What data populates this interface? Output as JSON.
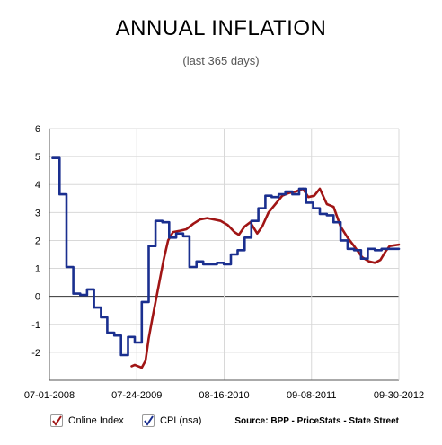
{
  "title": "ANNUAL INFLATION",
  "subtitle": "(last 365 days)",
  "legend": {
    "online_label": "Online Index",
    "cpi_label": "CPI (nsa)"
  },
  "source": "Source: BPP - PriceStats - State Street",
  "colors": {
    "online": "#a01515",
    "cpi": "#1a2f8f",
    "grid": "#d8d8d8",
    "axis": "#555555"
  },
  "chart_data": {
    "type": "line",
    "title": "ANNUAL INFLATION",
    "subtitle": "(last 365 days)",
    "xlabel": "",
    "ylabel": "",
    "x_tick_labels": [
      "07-01-2008",
      "07-24-2009",
      "08-16-2010",
      "09-08-2011",
      "09-30-2012"
    ],
    "y_tick_labels": [
      "-2",
      "-1",
      "0",
      "1",
      "2",
      "3",
      "4",
      "5",
      "6"
    ],
    "ylim": [
      -3,
      6
    ],
    "xlim": [
      "2008-07-01",
      "2012-09-30"
    ],
    "grid": true,
    "legend_position": "bottom-left",
    "series": [
      {
        "name": "Online Index",
        "step": false,
        "points": [
          [
            "2009-07-01",
            -2.5
          ],
          [
            "2009-07-15",
            -2.45
          ],
          [
            "2009-07-30",
            -2.5
          ],
          [
            "2009-08-15",
            -2.55
          ],
          [
            "2009-09-01",
            -2.3
          ],
          [
            "2009-09-15",
            -1.5
          ],
          [
            "2009-10-01",
            -0.8
          ],
          [
            "2009-10-15",
            -0.2
          ],
          [
            "2009-11-01",
            0.5
          ],
          [
            "2009-11-20",
            1.3
          ],
          [
            "2009-12-10",
            2.0
          ],
          [
            "2010-01-01",
            2.3
          ],
          [
            "2010-02-01",
            2.35
          ],
          [
            "2010-03-01",
            2.4
          ],
          [
            "2010-04-01",
            2.6
          ],
          [
            "2010-05-01",
            2.75
          ],
          [
            "2010-06-01",
            2.8
          ],
          [
            "2010-07-01",
            2.75
          ],
          [
            "2010-08-01",
            2.7
          ],
          [
            "2010-09-01",
            2.55
          ],
          [
            "2010-10-01",
            2.3
          ],
          [
            "2010-10-20",
            2.2
          ],
          [
            "2010-11-15",
            2.5
          ],
          [
            "2010-12-10",
            2.65
          ],
          [
            "2011-01-10",
            2.25
          ],
          [
            "2011-02-01",
            2.5
          ],
          [
            "2011-03-01",
            3.0
          ],
          [
            "2011-04-01",
            3.3
          ],
          [
            "2011-05-01",
            3.6
          ],
          [
            "2011-06-01",
            3.7
          ],
          [
            "2011-07-01",
            3.75
          ],
          [
            "2011-08-01",
            3.85
          ],
          [
            "2011-08-25",
            3.55
          ],
          [
            "2011-09-20",
            3.6
          ],
          [
            "2011-10-15",
            3.85
          ],
          [
            "2011-11-15",
            3.3
          ],
          [
            "2011-12-15",
            3.2
          ],
          [
            "2012-01-15",
            2.5
          ],
          [
            "2012-02-15",
            2.1
          ],
          [
            "2012-03-15",
            1.8
          ],
          [
            "2012-04-20",
            1.4
          ],
          [
            "2012-05-20",
            1.25
          ],
          [
            "2012-06-15",
            1.2
          ],
          [
            "2012-07-10",
            1.3
          ],
          [
            "2012-08-01",
            1.6
          ],
          [
            "2012-08-20",
            1.8
          ],
          [
            "2012-09-30",
            1.85
          ]
        ]
      },
      {
        "name": "CPI (nsa)",
        "step": true,
        "points": [
          [
            "2008-07-15",
            4.95
          ],
          [
            "2008-08-15",
            3.65
          ],
          [
            "2008-09-15",
            1.05
          ],
          [
            "2008-10-15",
            0.1
          ],
          [
            "2008-11-15",
            0.05
          ],
          [
            "2008-12-15",
            0.25
          ],
          [
            "2009-01-15",
            -0.4
          ],
          [
            "2009-02-15",
            -0.75
          ],
          [
            "2009-03-15",
            -1.3
          ],
          [
            "2009-04-15",
            -1.4
          ],
          [
            "2009-05-15",
            -2.1
          ],
          [
            "2009-06-15",
            -1.45
          ],
          [
            "2009-07-15",
            -1.65
          ],
          [
            "2009-08-15",
            -0.2
          ],
          [
            "2009-09-15",
            1.8
          ],
          [
            "2009-10-15",
            2.7
          ],
          [
            "2009-11-15",
            2.65
          ],
          [
            "2009-12-15",
            2.1
          ],
          [
            "2010-01-15",
            2.25
          ],
          [
            "2010-02-15",
            2.15
          ],
          [
            "2010-03-15",
            1.05
          ],
          [
            "2010-04-15",
            1.25
          ],
          [
            "2010-05-15",
            1.15
          ],
          [
            "2010-06-15",
            1.15
          ],
          [
            "2010-07-15",
            1.2
          ],
          [
            "2010-08-15",
            1.15
          ],
          [
            "2010-09-15",
            1.5
          ],
          [
            "2010-10-15",
            1.65
          ],
          [
            "2010-11-15",
            2.1
          ],
          [
            "2010-12-15",
            2.7
          ],
          [
            "2011-01-15",
            3.15
          ],
          [
            "2011-02-15",
            3.6
          ],
          [
            "2011-03-15",
            3.55
          ],
          [
            "2011-04-15",
            3.65
          ],
          [
            "2011-05-15",
            3.75
          ],
          [
            "2011-06-15",
            3.65
          ],
          [
            "2011-07-15",
            3.85
          ],
          [
            "2011-08-15",
            3.35
          ],
          [
            "2011-09-15",
            3.15
          ],
          [
            "2011-10-15",
            2.95
          ],
          [
            "2011-11-15",
            2.9
          ],
          [
            "2011-12-15",
            2.65
          ],
          [
            "2012-01-15",
            2.0
          ],
          [
            "2012-02-15",
            1.7
          ],
          [
            "2012-03-15",
            1.65
          ],
          [
            "2012-04-15",
            1.35
          ],
          [
            "2012-05-15",
            1.7
          ],
          [
            "2012-06-15",
            1.65
          ],
          [
            "2012-07-15",
            1.7
          ],
          [
            "2012-08-15",
            1.7
          ],
          [
            "2012-09-30",
            1.7
          ]
        ]
      }
    ]
  }
}
